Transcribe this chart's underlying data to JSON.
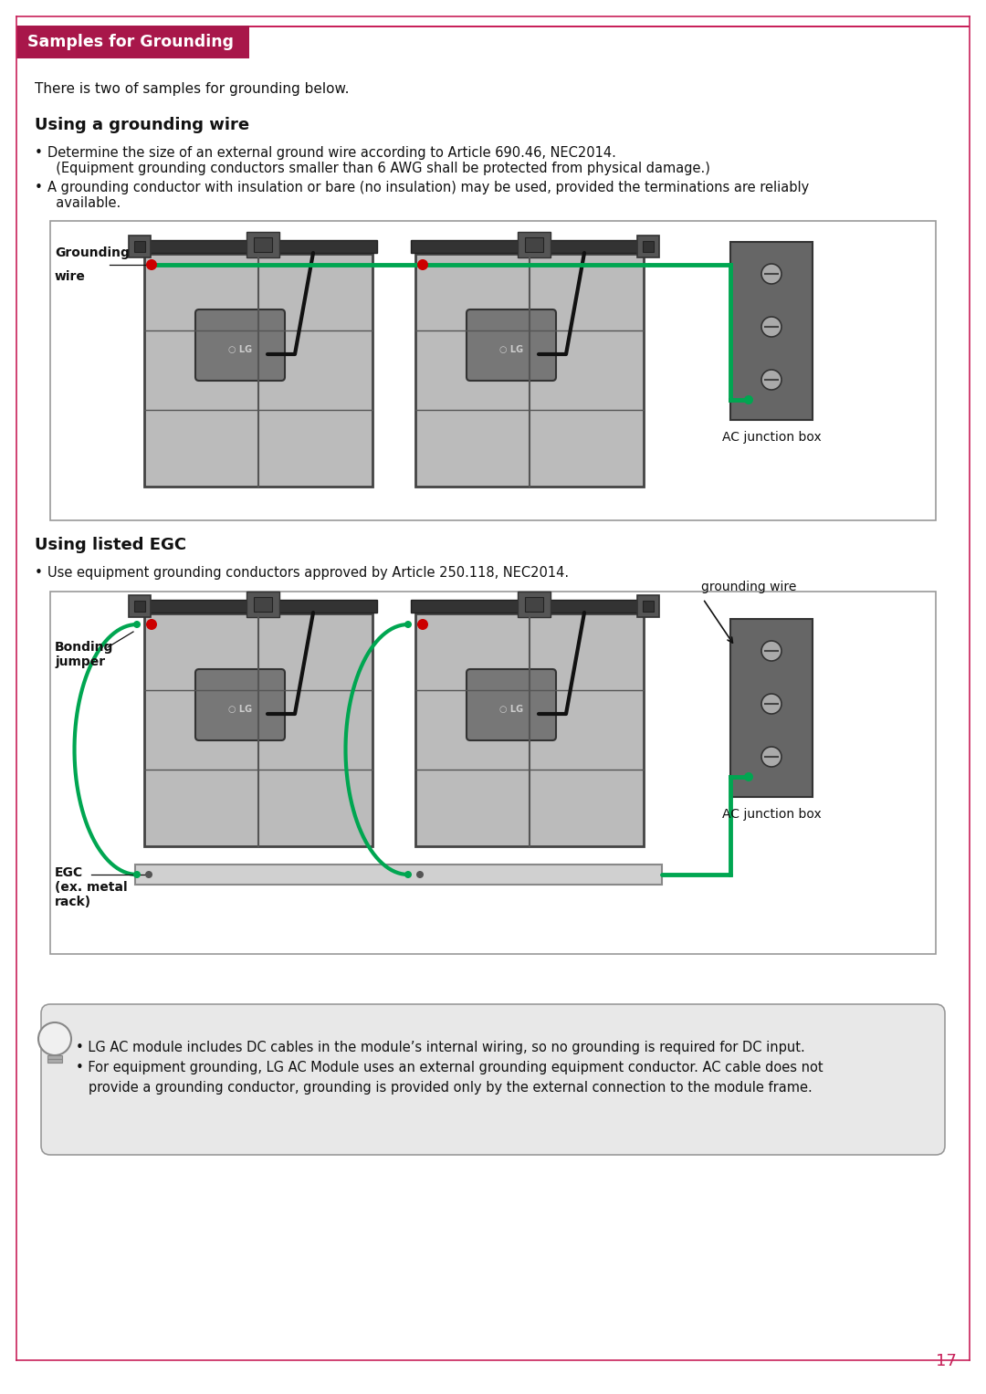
{
  "page_bg": "#ffffff",
  "border_color": "#c8215a",
  "header_bg": "#a8174a",
  "header_text": "Samples for Grounding",
  "header_text_color": "#ffffff",
  "page_number": "17",
  "page_number_color": "#c8215a",
  "intro_text": "There is two of samples for grounding below.",
  "section1_title": "Using a grounding wire",
  "section1_b1_line1": "Determine the size of an external ground wire according to Article 690.46, NEC2014.",
  "section1_b1_line2": "  (Equipment grounding conductors smaller than 6 AWG shall be protected from physical damage.)",
  "section1_b2_line1": "A grounding conductor with insulation or bare (no insulation) may be used, provided the terminations are reliably",
  "section1_b2_line2": "  available.",
  "section2_title": "Using listed EGC",
  "section2_b1": "Use equipment grounding conductors approved by Article 250.118, NEC2014.",
  "diagram1_label1": "Grounding",
  "diagram1_label1b": "wire",
  "diagram1_label2": "AC junction box",
  "diagram2_label1": "Bonding",
  "diagram2_label1b": "jumper",
  "diagram2_label2": "EGC",
  "diagram2_label2b": "(ex. metal",
  "diagram2_label2c": "rack)",
  "diagram2_label3": "grounding wire",
  "diagram2_label4": "AC junction box",
  "note_line1": "• LG AC module includes DC cables in the module’s internal wiring, so no grounding is required for DC input.",
  "note_line2": "• For equipment grounding, LG AC Module uses an external grounding equipment conductor. AC cable does not",
  "note_line3": "   provide a grounding conductor, grounding is provided only by the external connection to the module frame.",
  "green_color": "#00a651",
  "red_dot_color": "#cc0000",
  "panel_color": "#aaaaaa",
  "panel_light": "#c0c0c0",
  "rail_color": "#444444",
  "junction_color": "#666666",
  "egc_color": "#cccccc"
}
